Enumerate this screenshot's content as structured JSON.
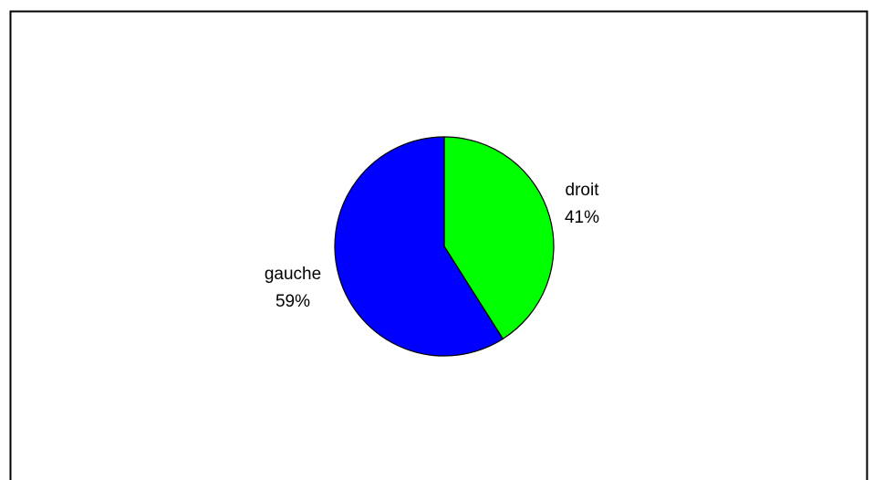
{
  "chart_data": {
    "type": "pie",
    "title": "",
    "categories": [
      "droit",
      "gauche"
    ],
    "values": [
      41,
      59
    ],
    "labels": [
      "41%",
      "59%"
    ],
    "colors": [
      "#00ff00",
      "#0000ff"
    ],
    "start_angle_deg": 0,
    "direction": "clockwise",
    "legend": "none",
    "data_labels": "category and percent"
  }
}
